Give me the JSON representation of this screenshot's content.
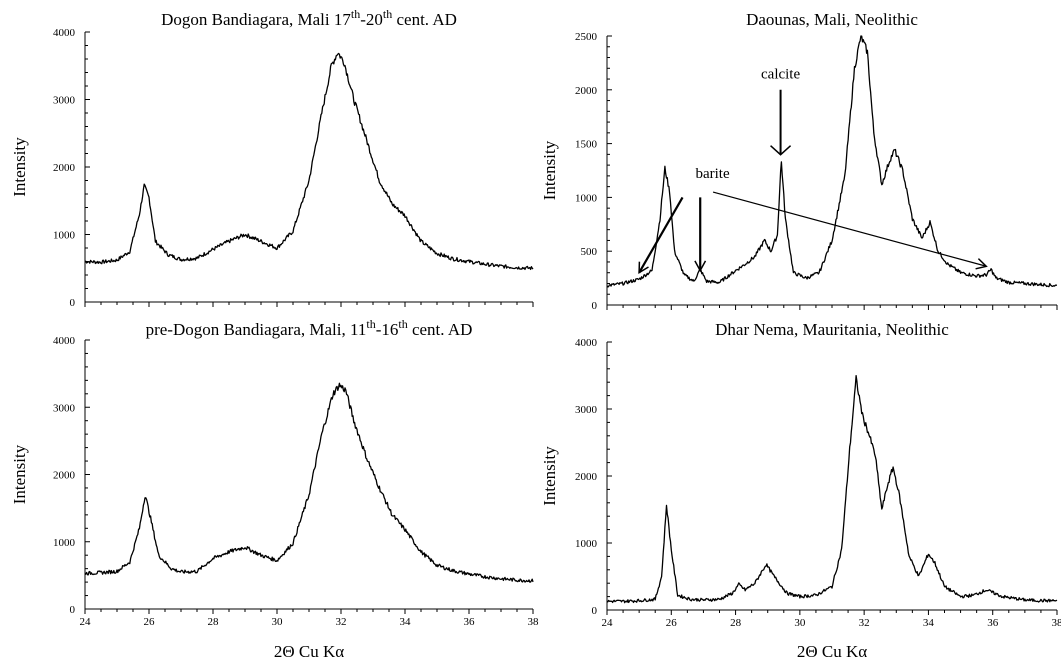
{
  "chart_data": [
    {
      "type": "line",
      "title": "Dogon Bandiagara, Mali 17th-20th cent. AD",
      "title_parts": [
        "Dogon Bandiagara, Mali 17",
        "th",
        "-20",
        "th",
        " cent. AD"
      ],
      "ylabel": "Intensity",
      "xlabel": "",
      "xlim": [
        24,
        38
      ],
      "ylim": [
        0,
        4000
      ],
      "yticks": [
        "0",
        "1000",
        "2000",
        "3000",
        "4000"
      ],
      "xticks": [],
      "grid": false,
      "color": "#000000",
      "series": [
        {
          "x": [
            24,
            24.5,
            25,
            25.4,
            25.7,
            25.85,
            26,
            26.2,
            26.6,
            27,
            27.5,
            28,
            28.5,
            29,
            29.5,
            30,
            30.5,
            31,
            31.4,
            31.7,
            31.9,
            32.1,
            32.4,
            32.8,
            33.2,
            33.6,
            34,
            34.5,
            35,
            35.5,
            36,
            36.5,
            37,
            37.5,
            38
          ],
          "y": [
            600,
            590,
            620,
            750,
            1300,
            1720,
            1550,
            900,
            700,
            630,
            650,
            780,
            900,
            1000,
            900,
            800,
            1050,
            1800,
            2800,
            3500,
            3700,
            3550,
            3000,
            2400,
            1800,
            1450,
            1280,
            900,
            720,
            640,
            600,
            560,
            530,
            510,
            500
          ]
        }
      ]
    },
    {
      "type": "line",
      "title": "Daounas, Mali, Neolithic",
      "title_parts": [
        "Daounas, Mali, Neolithic"
      ],
      "ylabel": "Intensity",
      "xlabel": "",
      "xlim": [
        24,
        38
      ],
      "ylim": [
        0,
        2500
      ],
      "yticks": [
        "0",
        "500",
        "1000",
        "1500",
        "2000",
        "2500"
      ],
      "xticks": [],
      "grid": false,
      "color": "#000000",
      "annotations": [
        {
          "text": "calcite",
          "at_x": 29.4,
          "at_y": 1350
        },
        {
          "text": "barite",
          "at_x": [
            25,
            26.9,
            35.8
          ],
          "at_y": [
            300,
            320,
            360
          ]
        }
      ],
      "series": [
        {
          "x": [
            24,
            24.5,
            25,
            25.4,
            25.65,
            25.8,
            25.95,
            26.1,
            26.4,
            26.7,
            26.9,
            27.1,
            27.5,
            28,
            28.3,
            28.6,
            28.9,
            29.1,
            29.3,
            29.42,
            29.55,
            29.8,
            30.2,
            30.6,
            31,
            31.4,
            31.7,
            31.9,
            32.1,
            32.3,
            32.55,
            32.8,
            32.95,
            33.2,
            33.5,
            33.8,
            34.05,
            34.3,
            34.6,
            35,
            35.5,
            35.8,
            35.95,
            36.1,
            36.5,
            37,
            37.5,
            38
          ],
          "y": [
            180,
            200,
            240,
            320,
            800,
            1270,
            1050,
            500,
            280,
            220,
            330,
            220,
            210,
            320,
            380,
            450,
            600,
            500,
            650,
            1350,
            800,
            300,
            250,
            300,
            600,
            1200,
            2200,
            2500,
            2350,
            1600,
            1120,
            1350,
            1440,
            1250,
            800,
            620,
            770,
            500,
            380,
            300,
            270,
            280,
            330,
            250,
            210,
            200,
            190,
            180
          ]
        }
      ]
    },
    {
      "type": "line",
      "title": "pre-Dogon Bandiagara, Mali, 11th-16th cent. AD",
      "title_parts": [
        "pre-Dogon Bandiagara, Mali, 11",
        "th",
        "-16",
        "th",
        " cent. AD"
      ],
      "ylabel": "Intensity",
      "xlabel": "2Θ Cu Kα",
      "xlim": [
        24,
        38
      ],
      "ylim": [
        0,
        4000
      ],
      "yticks": [
        "0",
        "1000",
        "2000",
        "3000",
        "4000"
      ],
      "xticks": [
        "24",
        "26",
        "28",
        "30",
        "32",
        "34",
        "36",
        "38"
      ],
      "grid": false,
      "color": "#000000",
      "series": [
        {
          "x": [
            24,
            24.5,
            25,
            25.4,
            25.7,
            25.88,
            26.05,
            26.3,
            26.7,
            27,
            27.5,
            28,
            28.5,
            29,
            29.5,
            30,
            30.5,
            31,
            31.4,
            31.75,
            31.95,
            32.15,
            32.4,
            32.8,
            33.2,
            33.6,
            34,
            34.5,
            35,
            35.5,
            36,
            36.5,
            37,
            37.5,
            38
          ],
          "y": [
            530,
            540,
            560,
            700,
            1200,
            1700,
            1350,
            800,
            600,
            550,
            560,
            750,
            850,
            920,
            800,
            720,
            980,
            1700,
            2600,
            3200,
            3330,
            3250,
            2800,
            2250,
            1800,
            1400,
            1180,
            850,
            650,
            570,
            520,
            480,
            450,
            430,
            420
          ]
        }
      ]
    },
    {
      "type": "line",
      "title": "Dhar Nema, Mauritania, Neolithic",
      "title_parts": [
        "Dhar Nema, Mauritania, Neolithic"
      ],
      "ylabel": "Intensity",
      "xlabel": "2Θ Cu Kα",
      "xlim": [
        24,
        38
      ],
      "ylim": [
        0,
        4000
      ],
      "yticks": [
        "0",
        "1000",
        "2000",
        "3000",
        "4000"
      ],
      "xticks": [
        "24",
        "26",
        "28",
        "30",
        "32",
        "34",
        "36",
        "38"
      ],
      "grid": false,
      "color": "#000000",
      "series": [
        {
          "x": [
            24,
            24.5,
            25,
            25.5,
            25.7,
            25.85,
            26,
            26.2,
            26.6,
            27,
            27.5,
            27.9,
            28.1,
            28.3,
            28.6,
            28.95,
            29.2,
            29.6,
            30,
            30.5,
            31,
            31.3,
            31.55,
            31.75,
            31.95,
            32.15,
            32.35,
            32.55,
            32.75,
            32.9,
            33.1,
            33.4,
            33.7,
            34,
            34.2,
            34.5,
            35,
            35.4,
            35.8,
            36.3,
            37,
            37.5,
            38
          ],
          "y": [
            130,
            130,
            140,
            160,
            500,
            1570,
            900,
            220,
            160,
            150,
            160,
            250,
            380,
            300,
            400,
            680,
            500,
            250,
            200,
            220,
            350,
            900,
            2400,
            3450,
            2900,
            2620,
            2300,
            1500,
            1900,
            2130,
            1700,
            800,
            500,
            840,
            700,
            350,
            200,
            220,
            300,
            200,
            150,
            140,
            140
          ]
        }
      ]
    }
  ]
}
